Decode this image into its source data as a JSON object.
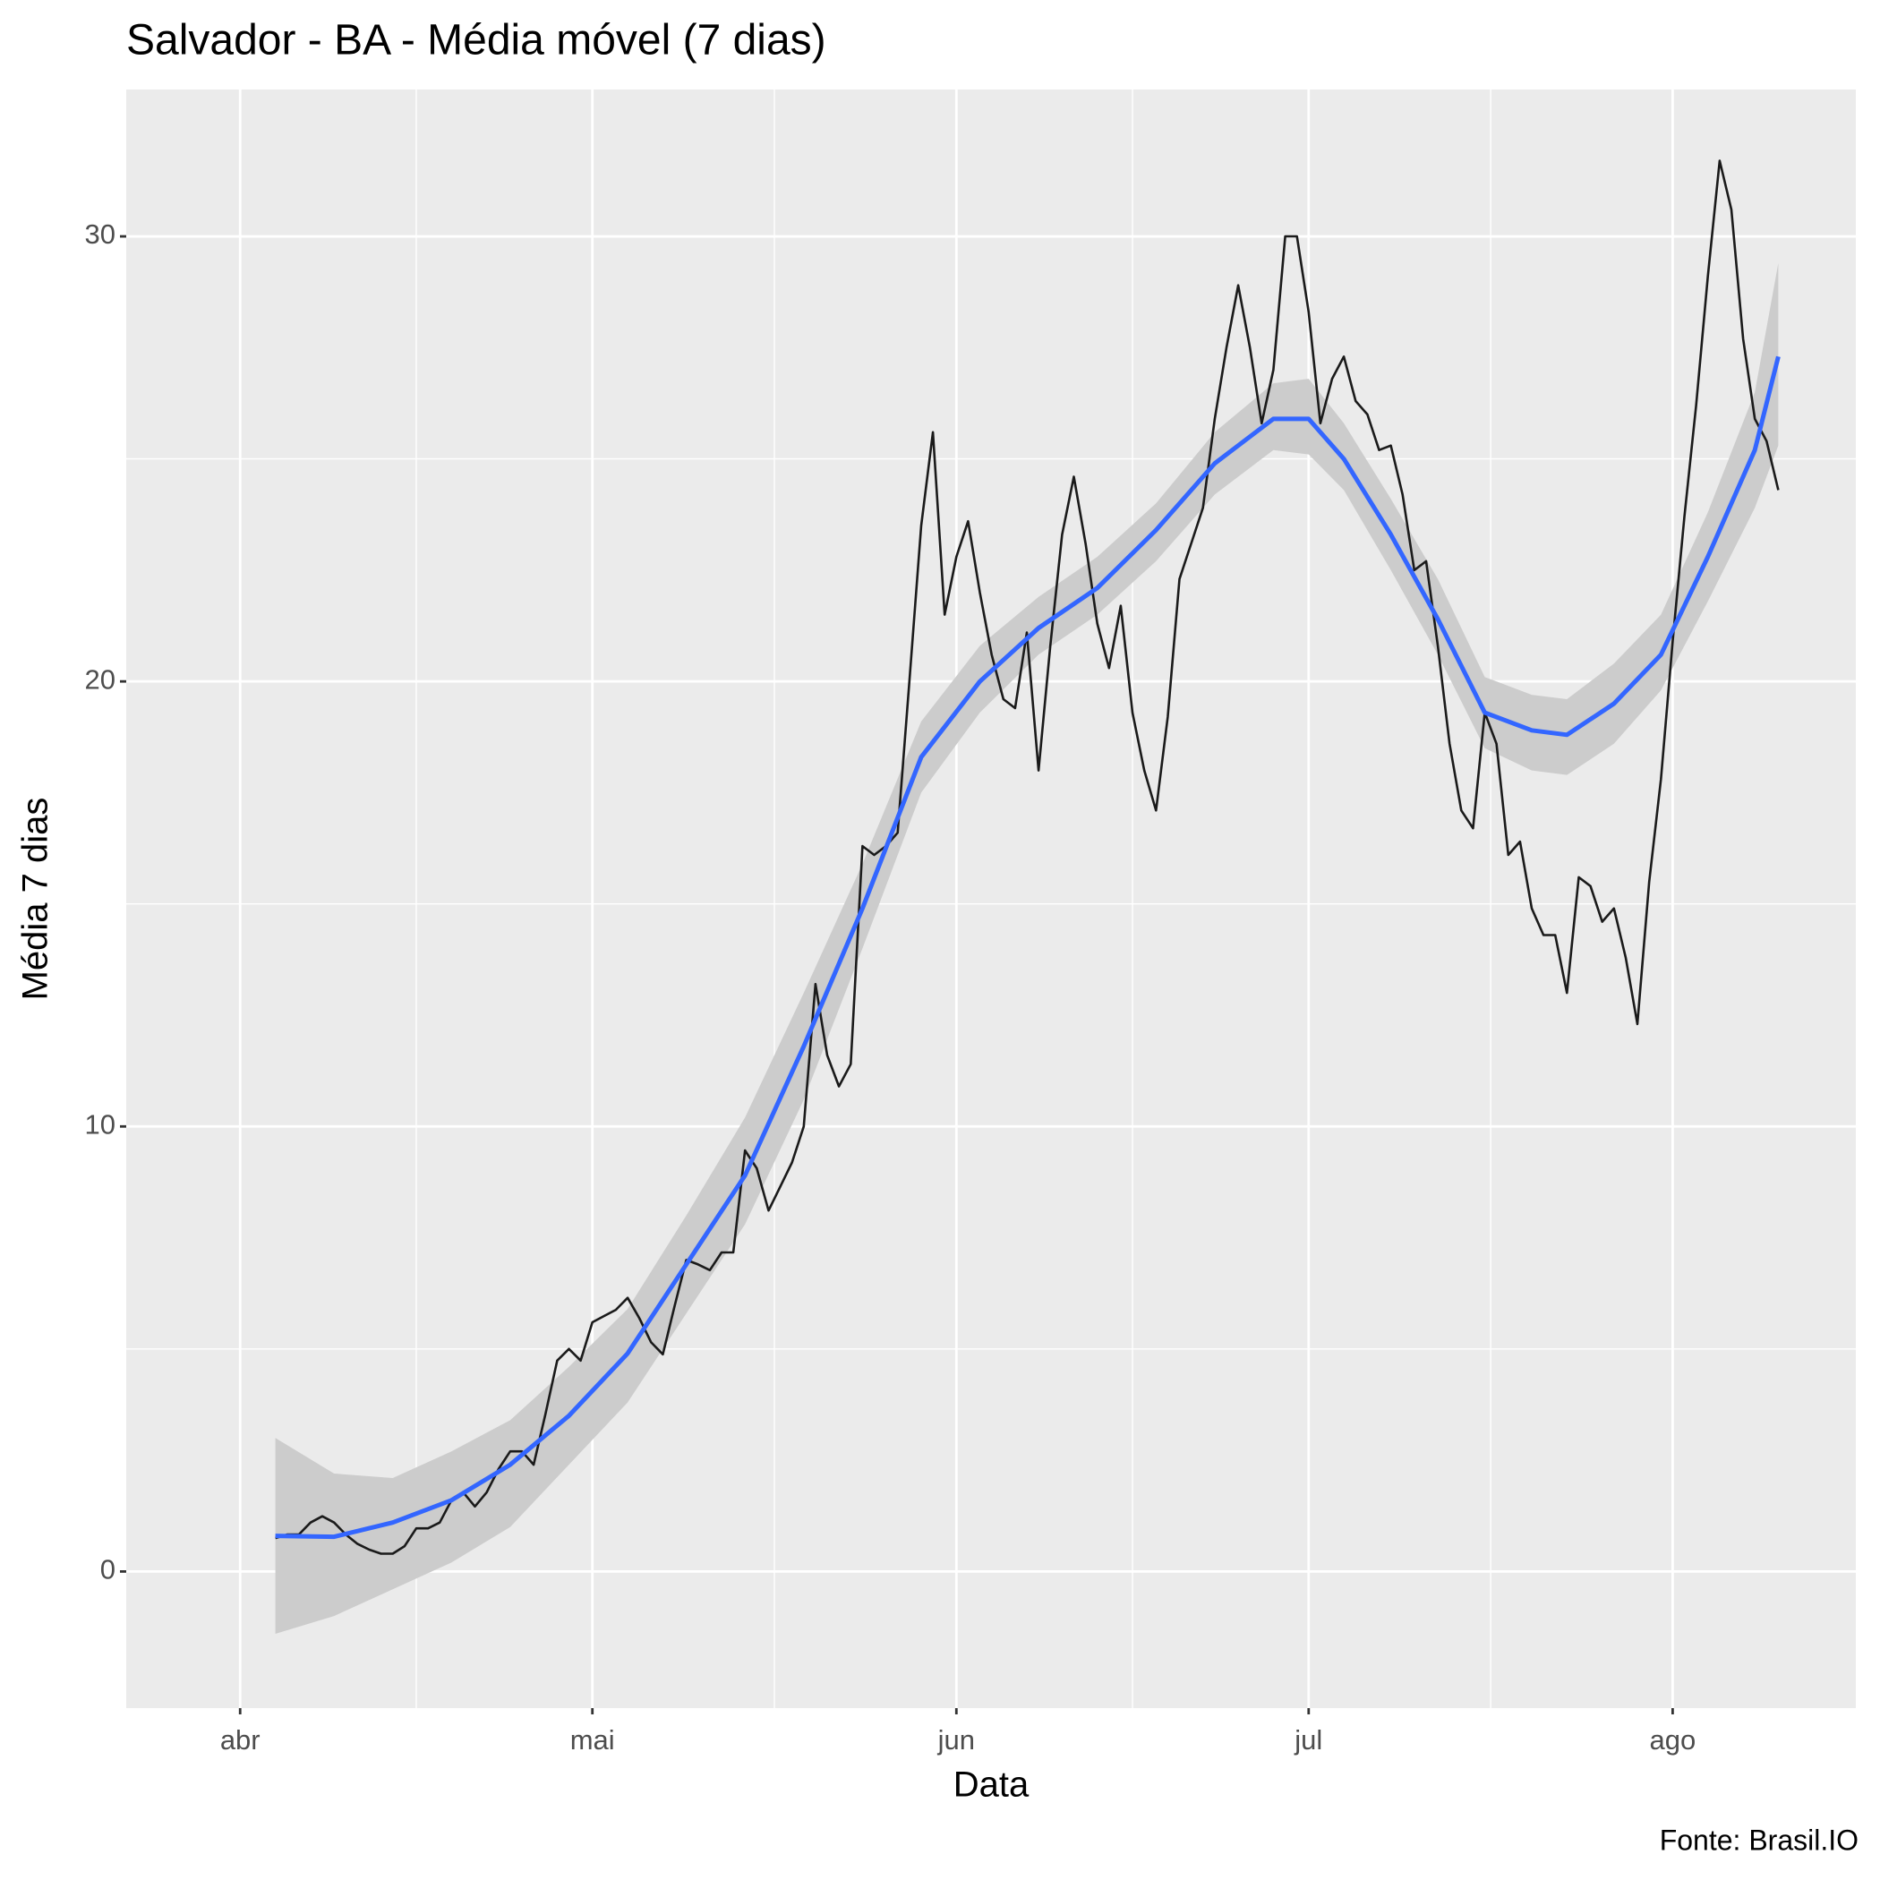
{
  "chart_data": {
    "type": "line",
    "title": "Salvador - BA - Média móvel (7 dias)",
    "x_label": "Data",
    "y_label": "Média 7 dias",
    "caption": "Fonte: Brasil.IO",
    "xlim": [
      -9.7,
      137.6
    ],
    "xticks": [
      {
        "value": 0,
        "label": "abr"
      },
      {
        "value": 30,
        "label": "mai"
      },
      {
        "value": 61,
        "label": "jun"
      },
      {
        "value": 91,
        "label": "jul"
      },
      {
        "value": 122,
        "label": "ago"
      }
    ],
    "ylim": [
      -3.07,
      33.3
    ],
    "yticks": [
      0,
      10,
      20,
      30
    ],
    "grid": true,
    "minor_grid": true,
    "panel_color": "#ebebeb",
    "series": [
      {
        "color": "#1a1a1a",
        "x": [
          3,
          4,
          5,
          6,
          7,
          8,
          9,
          10,
          11,
          12,
          13,
          14,
          15,
          16,
          17,
          18,
          19,
          20,
          21,
          22,
          23,
          24,
          25,
          26,
          27,
          28,
          29,
          30,
          31,
          32,
          33,
          34,
          35,
          36,
          37,
          38,
          39,
          40,
          41,
          42,
          43,
          44,
          45,
          46,
          47,
          48,
          49,
          50,
          51,
          52,
          53,
          54,
          55,
          56,
          57,
          58,
          59,
          60,
          61,
          62,
          63,
          64,
          65,
          66,
          67,
          68,
          69,
          70,
          71,
          72,
          73,
          74,
          75,
          76,
          77,
          78,
          79,
          80,
          81,
          82,
          83,
          84,
          85,
          86,
          87,
          88,
          89,
          90,
          91,
          92,
          93,
          94,
          95,
          96,
          97,
          98,
          99,
          100,
          101,
          102,
          103,
          104,
          105,
          106,
          107,
          108,
          109,
          110,
          111,
          112,
          113,
          114,
          115,
          116,
          117,
          118,
          119,
          120,
          121,
          122,
          123,
          124,
          125,
          126,
          127,
          128,
          129,
          130,
          131
        ],
        "values": [
          0.75,
          0.83,
          0.83,
          1.1,
          1.24,
          1.1,
          0.83,
          0.62,
          0.49,
          0.4,
          0.4,
          0.57,
          0.97,
          0.97,
          1.1,
          1.6,
          1.78,
          1.46,
          1.78,
          2.3,
          2.7,
          2.7,
          2.4,
          3.53,
          4.74,
          5.0,
          4.74,
          5.6,
          5.74,
          5.88,
          6.15,
          5.69,
          5.15,
          4.88,
          5.96,
          7.0,
          6.9,
          6.77,
          7.17,
          7.17,
          9.46,
          9.06,
          8.11,
          8.65,
          9.19,
          10.0,
          13.2,
          11.6,
          10.9,
          11.4,
          16.3,
          16.1,
          16.3,
          16.6,
          20.0,
          23.5,
          25.6,
          21.5,
          22.8,
          23.6,
          22.0,
          20.6,
          19.6,
          19.4,
          21.1,
          18.0,
          20.8,
          23.3,
          24.6,
          23.1,
          21.3,
          20.3,
          21.7,
          19.3,
          18.0,
          17.1,
          19.2,
          22.3,
          23.1,
          23.9,
          25.9,
          27.5,
          28.9,
          27.5,
          25.8,
          27.0,
          30.0,
          30.0,
          28.3,
          25.8,
          26.8,
          27.3,
          26.3,
          26.0,
          25.2,
          25.3,
          24.2,
          22.5,
          22.7,
          20.8,
          18.6,
          17.1,
          16.7,
          19.3,
          18.6,
          16.1,
          16.4,
          14.9,
          14.3,
          14.3,
          13.0,
          15.6,
          15.4,
          14.6,
          14.9,
          13.8,
          12.3,
          15.5,
          17.8,
          20.9,
          23.7,
          26.2,
          29.1,
          31.7,
          30.6,
          27.7,
          25.9,
          25.4,
          24.3
        ]
      },
      {
        "color": "#3366ff",
        "band_color": "#cccccc",
        "x": [
          3,
          8,
          13,
          18,
          23,
          28,
          33,
          38,
          43,
          48,
          53,
          58,
          63,
          68,
          73,
          78,
          83,
          88,
          91,
          94,
          98,
          102,
          106,
          110,
          113,
          117,
          121,
          125,
          129,
          131
        ],
        "values": [
          0.8,
          0.78,
          1.1,
          1.6,
          2.4,
          3.5,
          4.9,
          6.9,
          8.9,
          11.8,
          14.9,
          18.3,
          20.0,
          21.2,
          22.1,
          23.4,
          24.9,
          25.9,
          25.9,
          25.0,
          23.3,
          21.4,
          19.3,
          18.9,
          18.8,
          19.5,
          20.6,
          22.8,
          25.2,
          27.3
        ],
        "lower": [
          -1.4,
          -1.0,
          -0.4,
          0.2,
          1.0,
          2.4,
          3.8,
          5.8,
          7.8,
          10.6,
          14.0,
          17.5,
          19.3,
          20.6,
          21.5,
          22.7,
          24.2,
          25.2,
          25.1,
          24.3,
          22.5,
          20.6,
          18.5,
          18.0,
          17.9,
          18.6,
          19.8,
          21.8,
          23.9,
          25.3
        ],
        "upper": [
          3.0,
          2.2,
          2.1,
          2.7,
          3.4,
          4.6,
          5.9,
          8.0,
          10.2,
          13.0,
          15.9,
          19.1,
          20.8,
          21.9,
          22.8,
          24.0,
          25.6,
          26.7,
          26.8,
          25.8,
          24.1,
          22.3,
          20.1,
          19.7,
          19.6,
          20.4,
          21.5,
          23.8,
          26.5,
          29.4
        ]
      }
    ]
  }
}
